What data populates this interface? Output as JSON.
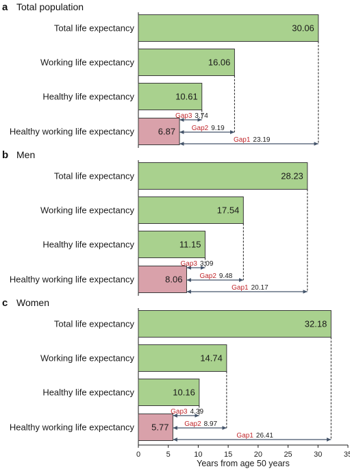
{
  "chart_data": {
    "type": "bar",
    "orientation": "horizontal",
    "xlabel": "Years from age 50 years",
    "xlim": [
      0,
      35
    ],
    "xticks": [
      0,
      5,
      10,
      15,
      20,
      25,
      30,
      35
    ],
    "categories": [
      "Total life expectancy",
      "Working life expectancy",
      "Healthy life expectancy",
      "Healthy working life expectancy"
    ],
    "colors": {
      "green_fill": "#a9d18e",
      "green_stroke": "#3a3a3a",
      "pink_fill": "#d9a1aa",
      "gap_label": "#c0282d",
      "arrow": "#44546a"
    },
    "panels": [
      {
        "label": "a",
        "title": "Total population",
        "values": [
          30.06,
          16.06,
          10.61,
          6.87
        ],
        "value_labels": [
          "30.06",
          "16.06",
          "10.61",
          "6.87"
        ],
        "gaps": [
          {
            "name": "Gap3",
            "value": "3.74",
            "from": 6.87,
            "to": 10.61
          },
          {
            "name": "Gap2",
            "value": "9.19",
            "from": 6.87,
            "to": 16.06
          },
          {
            "name": "Gap1",
            "value": "23.19",
            "from": 6.87,
            "to": 30.06
          }
        ]
      },
      {
        "label": "b",
        "title": "Men",
        "values": [
          28.23,
          17.54,
          11.15,
          8.06
        ],
        "value_labels": [
          "28.23",
          "17.54",
          "11.15",
          "8.06"
        ],
        "gaps": [
          {
            "name": "Gap3",
            "value": "3.09",
            "from": 8.06,
            "to": 11.15
          },
          {
            "name": "Gap2",
            "value": "9.48",
            "from": 8.06,
            "to": 17.54
          },
          {
            "name": "Gap1",
            "value": "20.17",
            "from": 8.06,
            "to": 28.23
          }
        ]
      },
      {
        "label": "c",
        "title": "Women",
        "values": [
          32.18,
          14.74,
          10.16,
          5.77
        ],
        "value_labels": [
          "32.18",
          "14.74",
          "10.16",
          "5.77"
        ],
        "gaps": [
          {
            "name": "Gap3",
            "value": "4.39",
            "from": 5.77,
            "to": 10.16
          },
          {
            "name": "Gap2",
            "value": "8.97",
            "from": 5.77,
            "to": 14.74
          },
          {
            "name": "Gap1",
            "value": "26.41",
            "from": 5.77,
            "to": 32.18
          }
        ]
      }
    ]
  }
}
